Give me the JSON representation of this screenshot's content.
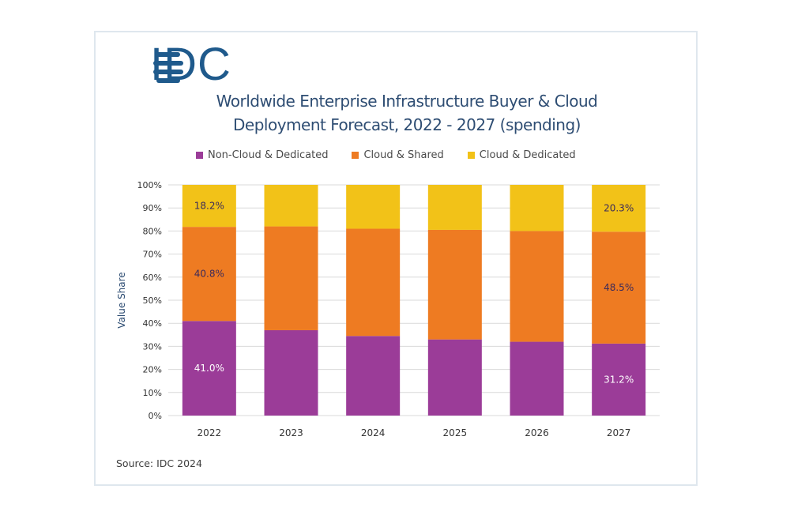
{
  "logo": {
    "text": "IDC",
    "color": "#1f5a8c"
  },
  "chart_data": {
    "type": "bar",
    "stacked": true,
    "title_lines": [
      "Worldwide Enterprise Infrastructure Buyer & Cloud",
      "Deployment Forecast, 2022 - 2027 (spending)"
    ],
    "ylabel": "Value  Share",
    "xlabel": "",
    "categories": [
      "2022",
      "2023",
      "2024",
      "2025",
      "2026",
      "2027"
    ],
    "ylim": [
      0,
      100
    ],
    "yticks": [
      "0%",
      "10%",
      "20%",
      "30%",
      "40%",
      "50%",
      "60%",
      "70%",
      "80%",
      "90%",
      "100%"
    ],
    "grid": true,
    "legend_position": "top",
    "series": [
      {
        "name": "Non-Cloud & Dedicated",
        "color": "#9b3c98",
        "label_color": "#ffffff",
        "values": [
          41.0,
          37.0,
          34.5,
          33.0,
          32.0,
          31.2
        ],
        "labels": [
          "41.0%",
          "",
          "",
          "",
          "",
          "31.2%"
        ]
      },
      {
        "name": "Cloud & Shared",
        "color": "#ee7b22",
        "label_color": "#3b2a5a",
        "values": [
          40.8,
          45.0,
          46.5,
          47.5,
          48.0,
          48.5
        ],
        "labels": [
          "40.8%",
          "",
          "",
          "",
          "",
          "48.5%"
        ]
      },
      {
        "name": "Cloud & Dedicated",
        "color": "#f2c218",
        "label_color": "#3b2a5a",
        "values": [
          18.2,
          18.0,
          19.0,
          19.5,
          20.0,
          20.3
        ],
        "labels": [
          "18.2%",
          "",
          "",
          "",
          "",
          "20.3%"
        ]
      }
    ],
    "source": "Source: IDC 2024"
  }
}
